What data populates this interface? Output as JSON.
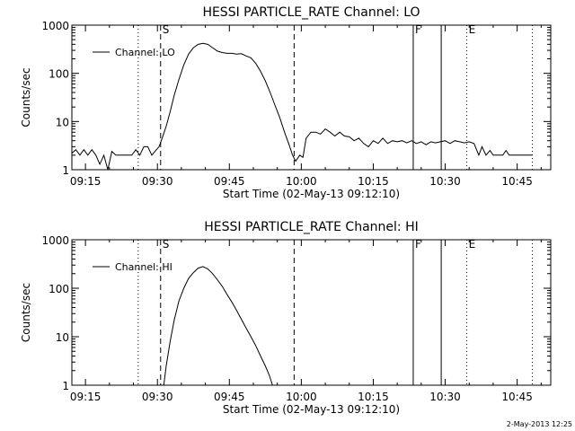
{
  "footer_stamp": "2-May-2013 12:25",
  "chart_data": [
    {
      "type": "line",
      "title": "HESSI PARTICLE_RATE Channel: LO",
      "xlabel": "Start Time (02-May-13 09:12:10)",
      "ylabel": "Counts/sec",
      "x_ticks": [
        "09:15",
        "09:30",
        "09:45",
        "10:00",
        "10:15",
        "10:30",
        "10:45"
      ],
      "xlim": [
        "09:12:10",
        "10:52:00"
      ],
      "y_ticks": [
        "1",
        "10",
        "100",
        "1000"
      ],
      "ylim": [
        1,
        1000
      ],
      "y_scale": "log",
      "legend": "Channel: LO",
      "legend_position": "top-left",
      "markers": [
        {
          "time": "09:26:00",
          "style": "dotted",
          "label": ""
        },
        {
          "time": "09:30:40",
          "style": "dashed",
          "label": "S"
        },
        {
          "time": "09:58:30",
          "style": "dashed",
          "label": ""
        },
        {
          "time": "10:23:20",
          "style": "solid",
          "label": "F"
        },
        {
          "time": "10:29:10",
          "style": "solid",
          "label": ""
        },
        {
          "time": "10:34:30",
          "style": "dotted",
          "label": "E"
        },
        {
          "time": "10:48:10",
          "style": "dotted",
          "label": ""
        }
      ],
      "series": [
        {
          "name": "Channel: LO",
          "points": [
            [
              "09:12:10",
              2.2
            ],
            [
              "09:13:00",
              2.6
            ],
            [
              "09:13:50",
              2.0
            ],
            [
              "09:14:40",
              2.6
            ],
            [
              "09:15:30",
              2.0
            ],
            [
              "09:16:20",
              2.6
            ],
            [
              "09:17:10",
              2.0
            ],
            [
              "09:18:00",
              1.3
            ],
            [
              "09:18:50",
              2.0
            ],
            [
              "09:19:40",
              1.0
            ],
            [
              "09:20:30",
              2.4
            ],
            [
              "09:21:20",
              2.0
            ],
            [
              "09:22:10",
              2.0
            ],
            [
              "09:23:00",
              2.0
            ],
            [
              "09:23:50",
              2.0
            ],
            [
              "09:24:40",
              2.0
            ],
            [
              "09:25:30",
              2.6
            ],
            [
              "09:26:20",
              2.0
            ],
            [
              "09:27:10",
              3.0
            ],
            [
              "09:28:00",
              3.0
            ],
            [
              "09:28:50",
              2.0
            ],
            [
              "09:29:40",
              2.5
            ],
            [
              "09:30:20",
              3.0
            ],
            [
              "09:31:00",
              4.5
            ],
            [
              "09:31:50",
              8.0
            ],
            [
              "09:32:40",
              16.0
            ],
            [
              "09:33:30",
              35.0
            ],
            [
              "09:34:30",
              75.0
            ],
            [
              "09:35:30",
              150.0
            ],
            [
              "09:36:30",
              250.0
            ],
            [
              "09:37:30",
              340.0
            ],
            [
              "09:38:30",
              400.0
            ],
            [
              "09:39:30",
              420.0
            ],
            [
              "09:40:30",
              400.0
            ],
            [
              "09:41:30",
              340.0
            ],
            [
              "09:42:30",
              290.0
            ],
            [
              "09:43:30",
              270.0
            ],
            [
              "09:44:30",
              260.0
            ],
            [
              "09:45:30",
              260.0
            ],
            [
              "09:46:30",
              250.0
            ],
            [
              "09:47:30",
              255.0
            ],
            [
              "09:48:30",
              230.0
            ],
            [
              "09:49:30",
              210.0
            ],
            [
              "09:50:30",
              160.0
            ],
            [
              "09:51:30",
              110.0
            ],
            [
              "09:52:30",
              70.0
            ],
            [
              "09:53:30",
              40.0
            ],
            [
              "09:54:30",
              22.0
            ],
            [
              "09:55:30",
              12.0
            ],
            [
              "09:56:30",
              6.0
            ],
            [
              "09:57:30",
              3.2
            ],
            [
              "09:58:10",
              2.0
            ],
            [
              "09:58:50",
              1.5
            ],
            [
              "09:59:40",
              2.0
            ],
            [
              "10:00:20",
              1.8
            ],
            [
              "10:01:00",
              4.5
            ],
            [
              "10:02:00",
              6.0
            ],
            [
              "10:03:00",
              6.0
            ],
            [
              "10:04:00",
              5.5
            ],
            [
              "10:05:00",
              7.0
            ],
            [
              "10:06:00",
              6.0
            ],
            [
              "10:07:00",
              5.0
            ],
            [
              "10:08:00",
              6.0
            ],
            [
              "10:09:00",
              5.0
            ],
            [
              "10:10:00",
              4.8
            ],
            [
              "10:11:00",
              4.0
            ],
            [
              "10:12:00",
              4.5
            ],
            [
              "10:13:00",
              3.5
            ],
            [
              "10:14:00",
              3.0
            ],
            [
              "10:15:00",
              4.0
            ],
            [
              "10:16:00",
              3.5
            ],
            [
              "10:17:00",
              4.5
            ],
            [
              "10:18:00",
              3.5
            ],
            [
              "10:19:00",
              4.0
            ],
            [
              "10:20:00",
              3.8
            ],
            [
              "10:21:00",
              4.0
            ],
            [
              "10:22:00",
              3.6
            ],
            [
              "10:23:00",
              4.0
            ],
            [
              "10:24:00",
              3.5
            ],
            [
              "10:25:00",
              3.8
            ],
            [
              "10:26:00",
              3.3
            ],
            [
              "10:27:00",
              3.8
            ],
            [
              "10:28:00",
              3.6
            ],
            [
              "10:29:00",
              3.8
            ],
            [
              "10:30:00",
              4.0
            ],
            [
              "10:31:00",
              3.5
            ],
            [
              "10:32:00",
              4.0
            ],
            [
              "10:33:00",
              3.8
            ],
            [
              "10:34:00",
              3.6
            ],
            [
              "10:35:00",
              3.8
            ],
            [
              "10:36:00",
              3.5
            ],
            [
              "10:37:00",
              2.0
            ],
            [
              "10:37:40",
              3.0
            ],
            [
              "10:38:30",
              2.0
            ],
            [
              "10:39:20",
              2.5
            ],
            [
              "10:40:00",
              2.0
            ],
            [
              "10:42:00",
              2.0
            ],
            [
              "10:42:40",
              2.5
            ],
            [
              "10:43:20",
              2.0
            ],
            [
              "10:46:00",
              2.0
            ],
            [
              "10:48:10",
              2.0
            ]
          ]
        }
      ]
    },
    {
      "type": "line",
      "title": "HESSI PARTICLE_RATE Channel: HI",
      "xlabel": "Start Time (02-May-13 09:12:10)",
      "ylabel": "Counts/sec",
      "x_ticks": [
        "09:15",
        "09:30",
        "09:45",
        "10:00",
        "10:15",
        "10:30",
        "10:45"
      ],
      "xlim": [
        "09:12:10",
        "10:52:00"
      ],
      "y_ticks": [
        "1",
        "10",
        "100",
        "1000"
      ],
      "ylim": [
        1,
        1000
      ],
      "y_scale": "log",
      "legend": "Channel: HI",
      "legend_position": "top-left",
      "markers": [
        {
          "time": "09:26:00",
          "style": "dotted",
          "label": ""
        },
        {
          "time": "09:30:40",
          "style": "dashed",
          "label": "S"
        },
        {
          "time": "09:58:30",
          "style": "dashed",
          "label": ""
        },
        {
          "time": "10:23:20",
          "style": "solid",
          "label": "F"
        },
        {
          "time": "10:29:10",
          "style": "solid",
          "label": ""
        },
        {
          "time": "10:34:30",
          "style": "dotted",
          "label": "E"
        },
        {
          "time": "10:48:10",
          "style": "dotted",
          "label": ""
        }
      ],
      "series": [
        {
          "name": "Channel: HI",
          "points": [
            [
              "09:31:20",
              1.0
            ],
            [
              "09:31:50",
              2.5
            ],
            [
              "09:32:40",
              8.0
            ],
            [
              "09:33:30",
              22.0
            ],
            [
              "09:34:30",
              55.0
            ],
            [
              "09:35:30",
              100.0
            ],
            [
              "09:36:30",
              160.0
            ],
            [
              "09:37:30",
              210.0
            ],
            [
              "09:38:30",
              260.0
            ],
            [
              "09:39:30",
              280.0
            ],
            [
              "09:40:30",
              250.0
            ],
            [
              "09:41:30",
              200.0
            ],
            [
              "09:42:30",
              150.0
            ],
            [
              "09:43:30",
              110.0
            ],
            [
              "09:44:30",
              75.0
            ],
            [
              "09:45:30",
              52.0
            ],
            [
              "09:46:30",
              35.0
            ],
            [
              "09:47:30",
              23.0
            ],
            [
              "09:48:30",
              15.0
            ],
            [
              "09:49:30",
              10.0
            ],
            [
              "09:50:30",
              6.5
            ],
            [
              "09:51:30",
              4.0
            ],
            [
              "09:52:30",
              2.5
            ],
            [
              "09:53:20",
              1.6
            ],
            [
              "09:54:00",
              1.0
            ]
          ]
        }
      ]
    }
  ]
}
